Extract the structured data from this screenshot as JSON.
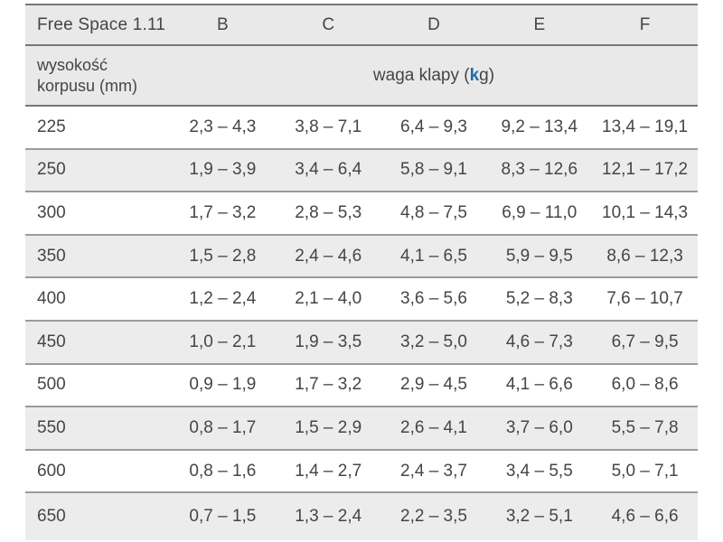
{
  "table": {
    "title": "Free Space 1.11",
    "columns": [
      "B",
      "C",
      "D",
      "E",
      "F"
    ],
    "row_header": {
      "line1": "wysokość",
      "line2": "korpusu (mm)"
    },
    "weight_label": {
      "prefix": "waga klapy (",
      "highlight": "k",
      "suffix": "g)"
    },
    "rows": [
      {
        "height_mm": "225",
        "values": [
          "2,3 – 4,3",
          "3,8 – 7,1",
          "6,4 – 9,3",
          "9,2 – 13,4",
          "13,4 – 19,1"
        ]
      },
      {
        "height_mm": "250",
        "values": [
          "1,9 – 3,9",
          "3,4 – 6,4",
          "5,8 – 9,1",
          "8,3 – 12,6",
          "12,1 – 17,2"
        ]
      },
      {
        "height_mm": "300",
        "values": [
          "1,7 – 3,2",
          "2,8 – 5,3",
          "4,8 – 7,5",
          "6,9 – 11,0",
          "10,1 – 14,3"
        ]
      },
      {
        "height_mm": "350",
        "values": [
          "1,5 – 2,8",
          "2,4 – 4,6",
          "4,1 – 6,5",
          "5,9 – 9,5",
          "8,6 – 12,3"
        ]
      },
      {
        "height_mm": "400",
        "values": [
          "1,2 – 2,4",
          "2,1 – 4,0",
          "3,6 – 5,6",
          "5,2 – 8,3",
          "7,6 – 10,7"
        ]
      },
      {
        "height_mm": "450",
        "values": [
          "1,0 – 2,1",
          "1,9 – 3,5",
          "3,2 – 5,0",
          "4,6 – 7,3",
          "6,7 – 9,5"
        ]
      },
      {
        "height_mm": "500",
        "values": [
          "0,9 – 1,9",
          "1,7 – 3,2",
          "2,9 – 4,5",
          "4,1 – 6,6",
          "6,0 – 8,6"
        ]
      },
      {
        "height_mm": "550",
        "values": [
          "0,8 – 1,7",
          "1,5 – 2,9",
          "2,6 – 4,1",
          "3,7 – 6,0",
          "5,5 – 7,8"
        ]
      },
      {
        "height_mm": "600",
        "values": [
          "0,8 – 1,6",
          "1,4 – 2,7",
          "2,4 – 3,7",
          "3,4 – 5,5",
          "5,0 – 7,1"
        ]
      },
      {
        "height_mm": "650",
        "values": [
          "0,7 – 1,5",
          "1,3 – 2,4",
          "2,2 – 3,5",
          "3,2 – 5,1",
          "4,6 – 6,6"
        ]
      }
    ]
  },
  "colors": {
    "accent_blue": "#1e6fa8",
    "header_bg": "#e9e9e9",
    "stripe_bg": "#ececec",
    "rule_dark": "#767676",
    "rule_light": "#9b9b9b",
    "text": "#454545"
  }
}
